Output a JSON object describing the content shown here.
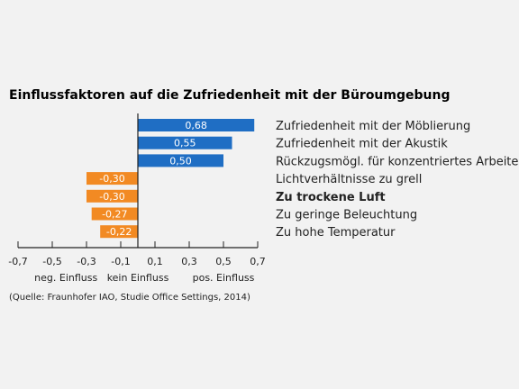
{
  "chart_data": {
    "type": "bar",
    "orientation": "horizontal",
    "title": "Einflussfaktoren auf die Zufriedenheit mit der Büroumgebung",
    "categories": [
      "Zufriedenheit mit der Möblierung",
      "Zufriedenheit mit der Akustik",
      "Rückzugsmögl. für konzentriertes Arbeiten",
      "Lichtverhältnisse zu grell",
      "Zu trockene Luft",
      "Zu geringe Beleuchtung",
      "Zu hohe Temperatur"
    ],
    "bold_categories": [
      "Zu trockene Luft"
    ],
    "values": [
      0.68,
      0.55,
      0.5,
      -0.3,
      -0.3,
      -0.27,
      -0.22
    ],
    "data_labels": [
      "0,68",
      "0,55",
      "0,50",
      "-0,30",
      "-0,30",
      "-0,27",
      "-0,22"
    ],
    "xlim": [
      -0.7,
      0.7
    ],
    "xticks": [
      -0.7,
      -0.5,
      -0.3,
      -0.1,
      0.1,
      0.3,
      0.5,
      0.7
    ],
    "xtick_labels": [
      "-0,7",
      "-0,5",
      "-0,3",
      "-0,1",
      "0,1",
      "0,3",
      "0,5",
      "0,7"
    ],
    "axis_annotations": [
      {
        "text": "neg. Einfluss",
        "at": -0.42
      },
      {
        "text": "kein Einfluss",
        "at": 0.0
      },
      {
        "text": "pos. Einfluss",
        "at": 0.5
      }
    ],
    "colors": {
      "positive": "#1f6ec4",
      "negative": "#f28a23",
      "axis": "#222222"
    },
    "source": "(Quelle: Fraunhofer IAO, Studie Office Settings, 2014)",
    "grid": false
  }
}
